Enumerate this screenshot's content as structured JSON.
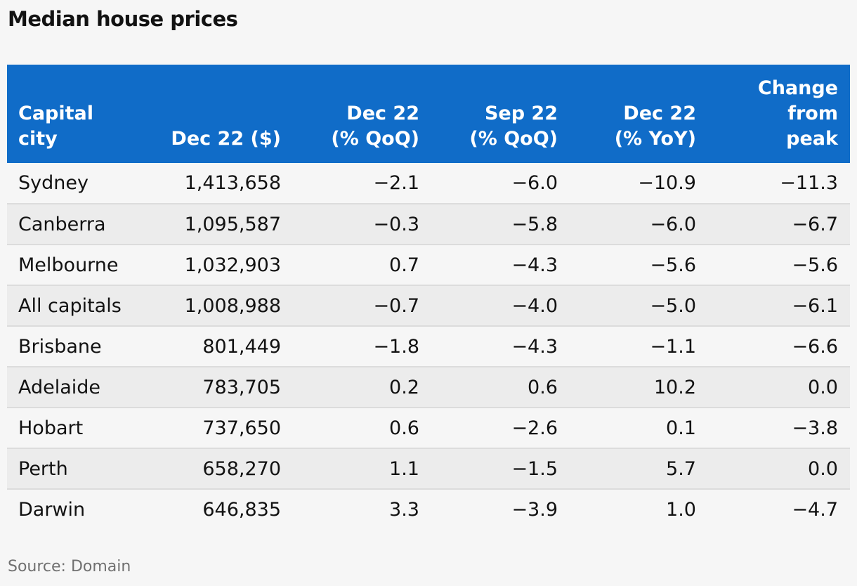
{
  "title": "Median house prices",
  "source": "Source: Domain",
  "chart_data": {
    "type": "table",
    "title": "Median house prices",
    "columns": [
      "Capital\ncity",
      "Dec 22 ($)",
      "Dec 22\n(% QoQ)",
      "Sep 22\n(% QoQ)",
      "Dec 22\n(% YoY)",
      "Change\nfrom\npeak"
    ],
    "rows": [
      [
        "Sydney",
        "1,413,658",
        "−2.1",
        "−6.0",
        "−10.9",
        "−11.3"
      ],
      [
        "Canberra",
        "1,095,587",
        "−0.3",
        "−5.8",
        "−6.0",
        "−6.7"
      ],
      [
        "Melbourne",
        "1,032,903",
        "0.7",
        "−4.3",
        "−5.6",
        "−5.6"
      ],
      [
        "All capitals",
        "1,008,988",
        "−0.7",
        "−4.0",
        "−5.0",
        "−6.1"
      ],
      [
        "Brisbane",
        "801,449",
        "−1.8",
        "−4.3",
        "−1.1",
        "−6.6"
      ],
      [
        "Adelaide",
        "783,705",
        "0.2",
        "0.6",
        "10.2",
        "0.0"
      ],
      [
        "Hobart",
        "737,650",
        "0.6",
        "−2.6",
        "0.1",
        "−3.8"
      ],
      [
        "Perth",
        "658,270",
        "1.1",
        "−1.5",
        "5.7",
        "0.0"
      ],
      [
        "Darwin",
        "646,835",
        "3.3",
        "−3.9",
        "1.0",
        "−4.7"
      ]
    ],
    "header_color": "#106cc8",
    "header_text_color": "#ffffff",
    "stripe_color": "#ececec",
    "background_color": "#f6f6f6"
  }
}
